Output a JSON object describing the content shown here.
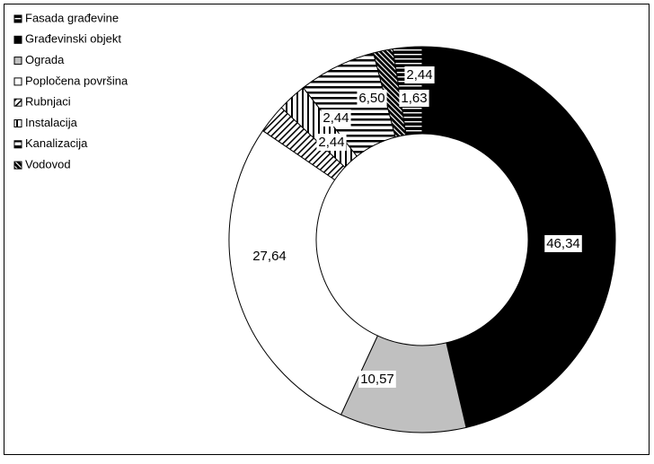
{
  "chart_data": {
    "type": "pie",
    "variant": "donut",
    "title": "",
    "legend_position": "top-left",
    "unit": "%",
    "slices": [
      {
        "name": "Fasada građevine",
        "value": 2.44,
        "label": "2,44",
        "fill": "black",
        "pattern": "hstripes-light"
      },
      {
        "name": "Građevinski objekt",
        "value": 46.34,
        "label": "46,34",
        "fill": "#000000",
        "pattern": "solid"
      },
      {
        "name": "Ograda",
        "value": 10.57,
        "label": "10,57",
        "fill": "#c0c0c0",
        "pattern": "solid"
      },
      {
        "name": "Popločena površina",
        "value": 27.64,
        "label": "27,64",
        "fill": "#ffffff",
        "pattern": "solid"
      },
      {
        "name": "Rubnjaci",
        "value": 2.44,
        "label": "2,44",
        "fill": "#ffffff",
        "pattern": "diagonal"
      },
      {
        "name": "Instalacija",
        "value": 2.44,
        "label": "2,44",
        "fill": "#ffffff",
        "pattern": "vstripes"
      },
      {
        "name": "Kanalizacija",
        "value": 6.5,
        "label": "6,50",
        "fill": "#ffffff",
        "pattern": "hstripes"
      },
      {
        "name": "Vodovod",
        "value": 1.63,
        "label": "1,63",
        "fill": "#000000",
        "pattern": "diag-dense"
      }
    ]
  }
}
